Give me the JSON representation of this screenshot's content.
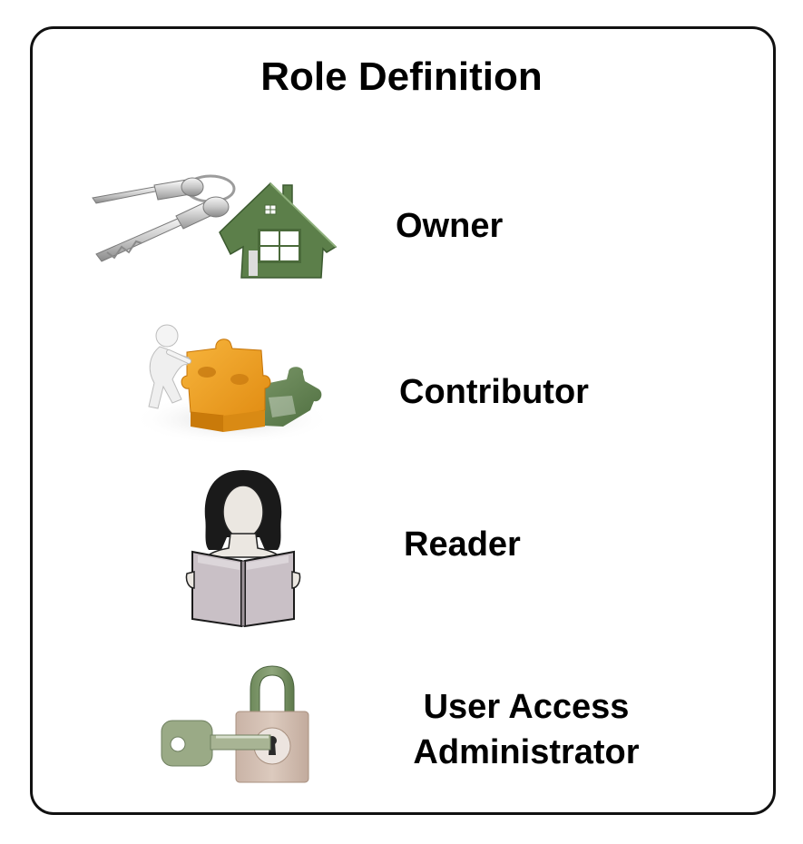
{
  "title": "Role Definition",
  "roles": [
    {
      "label": "Owner",
      "icon": "house-keys-icon"
    },
    {
      "label": "Contributor",
      "icon": "puzzle-person-icon"
    },
    {
      "label": "Reader",
      "icon": "woman-reading-icon"
    },
    {
      "label_lines": [
        "User Access",
        "Administrator"
      ],
      "icon": "padlock-key-icon"
    }
  ],
  "colors": {
    "green": "#5c7f4a",
    "orange": "#f0a52a",
    "book": "#c9c0c6",
    "lock_body": "#d4bfb2",
    "key_green": "#9aaa86"
  }
}
